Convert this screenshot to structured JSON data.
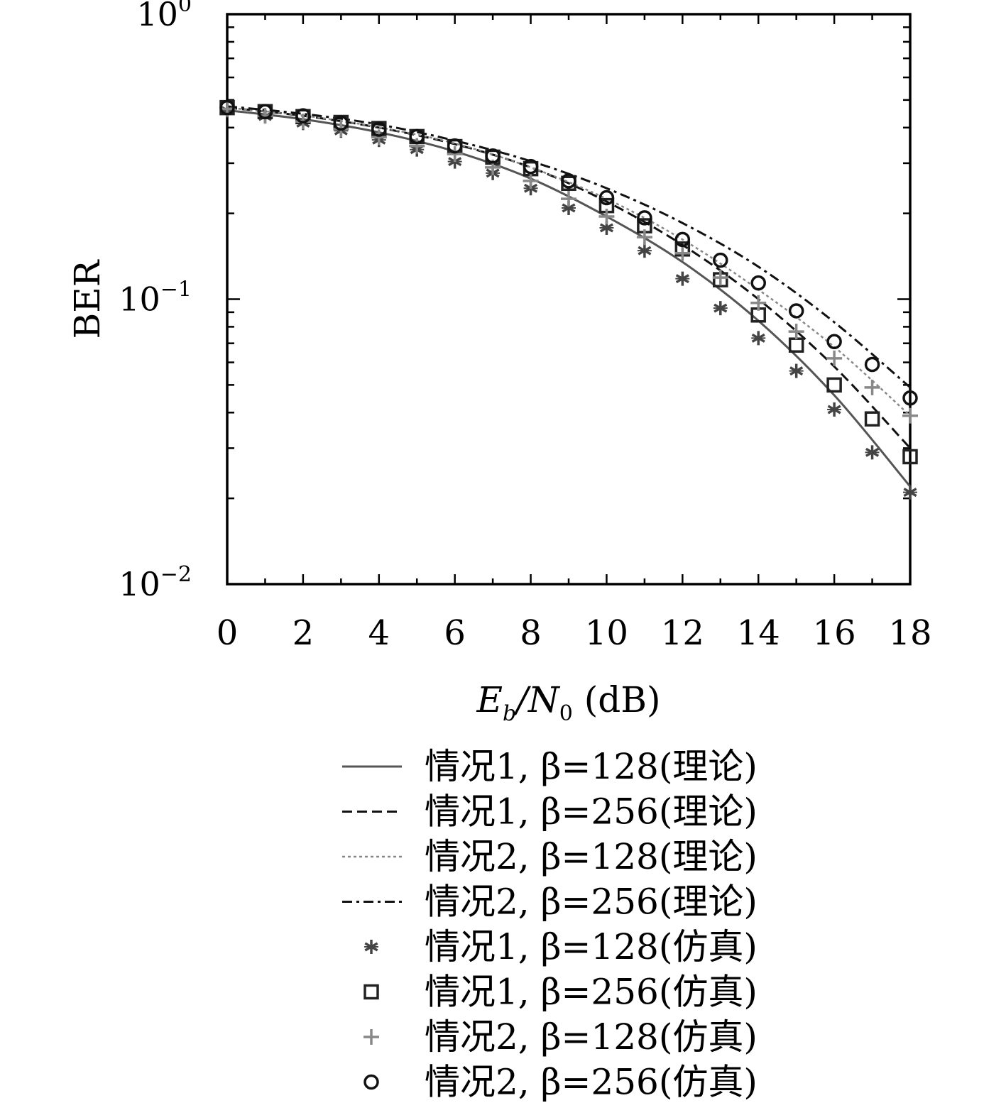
{
  "chart_data": {
    "type": "line",
    "ylabel": "BER",
    "xlabel": {
      "pre": "E",
      "sub1": "b",
      "slash": "/N",
      "sub2": "0",
      "post": " (dB)"
    },
    "x_ticks": [
      "0",
      "2",
      "4",
      "6",
      "8",
      "10",
      "12",
      "14",
      "16",
      "18"
    ],
    "y_ticks": [
      {
        "base": "10",
        "exp": "0",
        "value": 1
      },
      {
        "base": "10",
        "exp": "−1",
        "value": 0.1
      },
      {
        "base": "10",
        "exp": "−2",
        "value": 0.01
      }
    ],
    "xlim": [
      0,
      18
    ],
    "ylim": [
      0.01,
      1
    ],
    "y_scale": "log",
    "grid": false,
    "legend_position": "below",
    "series": [
      {
        "name": "情况1, β=128(理论)",
        "kind": "line",
        "style": "solid",
        "color": "#555555",
        "x": [
          0,
          2,
          4,
          6,
          8,
          10,
          12,
          14,
          16,
          18
        ],
        "y": [
          0.46,
          0.428,
          0.385,
          0.33,
          0.265,
          0.195,
          0.135,
          0.084,
          0.046,
          0.022
        ]
      },
      {
        "name": "情况1, β=256(理论)",
        "kind": "line",
        "style": "dashed",
        "color": "#111111",
        "x": [
          0,
          2,
          4,
          6,
          8,
          10,
          12,
          14,
          16,
          18
        ],
        "y": [
          0.47,
          0.44,
          0.4,
          0.35,
          0.29,
          0.22,
          0.155,
          0.1,
          0.058,
          0.03
        ]
      },
      {
        "name": "情况2, β=128(理论)",
        "kind": "line",
        "style": "dotted",
        "color": "#888888",
        "x": [
          0,
          2,
          4,
          6,
          8,
          10,
          12,
          14,
          16,
          18
        ],
        "y": [
          0.47,
          0.441,
          0.401,
          0.352,
          0.29,
          0.225,
          0.162,
          0.108,
          0.068,
          0.039
        ]
      },
      {
        "name": "情况2, β=256(理论)",
        "kind": "line",
        "style": "dashdot",
        "color": "#111111",
        "x": [
          0,
          2,
          4,
          6,
          8,
          10,
          12,
          14,
          16,
          18
        ],
        "y": [
          0.475,
          0.447,
          0.41,
          0.36,
          0.305,
          0.245,
          0.185,
          0.13,
          0.083,
          0.049
        ]
      },
      {
        "name": "情况1, β=128(仿真)",
        "kind": "marker",
        "marker": "asterisk",
        "color": "#444444",
        "x": [
          0,
          1,
          2,
          3,
          4,
          5,
          6,
          7,
          8,
          9,
          10,
          11,
          12,
          13,
          14,
          15,
          16,
          17,
          18
        ],
        "y": [
          0.46,
          0.438,
          0.415,
          0.39,
          0.362,
          0.335,
          0.304,
          0.277,
          0.245,
          0.209,
          0.178,
          0.148,
          0.118,
          0.093,
          0.073,
          0.056,
          0.041,
          0.029,
          0.021
        ]
      },
      {
        "name": "情况1, β=256(仿真)",
        "kind": "marker",
        "marker": "square",
        "color": "#222222",
        "x": [
          0,
          1,
          2,
          3,
          4,
          5,
          6,
          7,
          8,
          9,
          10,
          11,
          12,
          13,
          14,
          15,
          16,
          17,
          18
        ],
        "y": [
          0.47,
          0.455,
          0.437,
          0.417,
          0.397,
          0.372,
          0.343,
          0.315,
          0.287,
          0.255,
          0.213,
          0.181,
          0.15,
          0.117,
          0.088,
          0.069,
          0.05,
          0.038,
          0.028
        ]
      },
      {
        "name": "情况2, β=128(仿真)",
        "kind": "marker",
        "marker": "plus",
        "color": "#888888",
        "x": [
          0,
          1,
          2,
          3,
          4,
          5,
          6,
          7,
          8,
          9,
          10,
          11,
          12,
          13,
          14,
          15,
          16,
          17,
          18
        ],
        "y": [
          0.465,
          0.44,
          0.42,
          0.395,
          0.37,
          0.345,
          0.323,
          0.29,
          0.26,
          0.225,
          0.195,
          0.165,
          0.145,
          0.119,
          0.097,
          0.077,
          0.062,
          0.049,
          0.039
        ]
      },
      {
        "name": "情况2, β=256(仿真)",
        "kind": "marker",
        "marker": "circle",
        "color": "#111111",
        "x": [
          0,
          1,
          2,
          3,
          4,
          5,
          6,
          7,
          8,
          9,
          10,
          11,
          12,
          13,
          14,
          15,
          16,
          17,
          18
        ],
        "y": [
          0.47,
          0.455,
          0.44,
          0.415,
          0.395,
          0.372,
          0.345,
          0.318,
          0.292,
          0.26,
          0.227,
          0.193,
          0.162,
          0.137,
          0.114,
          0.091,
          0.071,
          0.059,
          0.045
        ]
      }
    ]
  }
}
